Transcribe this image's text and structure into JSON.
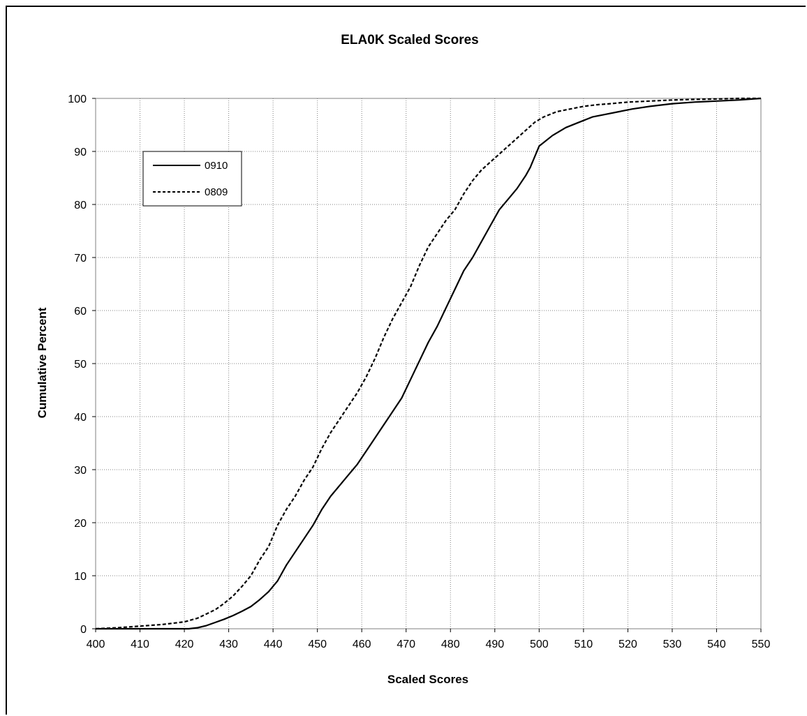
{
  "chart_data": {
    "type": "line",
    "title": "ELA0K Scaled Scores",
    "xlabel": "Scaled Scores",
    "ylabel": "Cumulative Percent",
    "xlim": [
      400,
      550
    ],
    "ylim": [
      0,
      100
    ],
    "xticks": [
      400,
      410,
      420,
      430,
      440,
      450,
      460,
      470,
      480,
      490,
      500,
      510,
      520,
      530,
      540,
      550
    ],
    "yticks": [
      0,
      10,
      20,
      30,
      40,
      50,
      60,
      70,
      80,
      90,
      100
    ],
    "xtick_labels": [
      "400",
      "410",
      "420",
      "430",
      "440",
      "450",
      "460",
      "470",
      "480",
      "490",
      "500",
      "510",
      "520",
      "530",
      "540",
      "550"
    ],
    "ytick_labels": [
      "0",
      "10",
      "20",
      "30",
      "40",
      "50",
      "60",
      "70",
      "80",
      "90",
      "100"
    ],
    "grid": true,
    "legend_position": "top-left",
    "series": [
      {
        "name": "0910",
        "style": "solid",
        "color": "#000000",
        "x": [
          400,
          421,
          423,
          425,
          427,
          429,
          431,
          433,
          435,
          437,
          439,
          441,
          443,
          445,
          447,
          449,
          451,
          453,
          455,
          457,
          459,
          461,
          463,
          465,
          467,
          469,
          471,
          473,
          475,
          477,
          479,
          481,
          483,
          485,
          487,
          489,
          491,
          493,
          495,
          497,
          498,
          500,
          503,
          506,
          509,
          512,
          515,
          518,
          521,
          525,
          530,
          535,
          540,
          545,
          550
        ],
        "y": [
          0,
          0,
          0.2,
          0.6,
          1.2,
          1.8,
          2.5,
          3.3,
          4.2,
          5.5,
          7,
          9,
          12,
          14.5,
          17,
          19.5,
          22.5,
          25,
          27,
          29,
          31,
          33.5,
          36,
          38.5,
          41,
          43.5,
          47,
          50.5,
          54,
          57,
          60.5,
          64,
          67.5,
          70,
          73,
          76,
          79,
          81,
          83,
          85.5,
          87,
          91,
          93,
          94.5,
          95.5,
          96.5,
          97,
          97.5,
          98,
          98.5,
          99,
          99.3,
          99.5,
          99.7,
          100
        ]
      },
      {
        "name": "0809",
        "style": "dashed",
        "color": "#000000",
        "x": [
          400,
          405,
          410,
          415,
          420,
          423,
          425,
          427,
          429,
          431,
          433,
          435,
          437,
          439,
          441,
          443,
          445,
          447,
          449,
          451,
          453,
          455,
          457,
          459,
          461,
          463,
          465,
          467,
          469,
          471,
          473,
          475,
          477,
          479,
          481,
          483,
          485,
          487,
          489,
          491,
          493,
          495,
          497,
          499,
          501,
          504,
          507,
          510,
          513,
          516,
          520,
          525,
          530,
          535,
          540,
          545,
          550
        ],
        "y": [
          0,
          0.2,
          0.5,
          0.8,
          1.3,
          2,
          2.8,
          3.6,
          4.8,
          6.2,
          8,
          10,
          13,
          15.5,
          19.5,
          22.5,
          25,
          28,
          30.5,
          34,
          37,
          39.5,
          42,
          44.5,
          47.5,
          51,
          55,
          58.5,
          61.5,
          64.5,
          68.5,
          72,
          74.5,
          77,
          79,
          82,
          84.5,
          86.5,
          88,
          89.5,
          91,
          92.5,
          94,
          95.5,
          96.5,
          97.5,
          98,
          98.5,
          98.8,
          99,
          99.3,
          99.5,
          99.7,
          99.8,
          99.9,
          100,
          100
        ]
      }
    ]
  }
}
